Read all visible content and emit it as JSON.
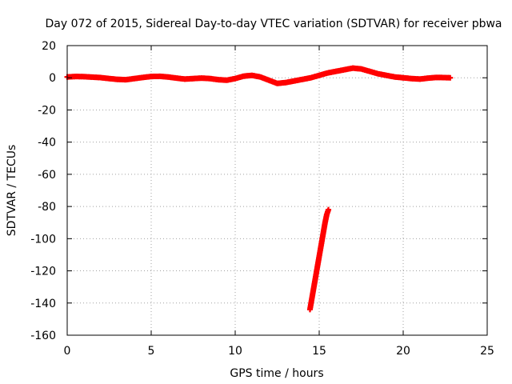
{
  "chart_data": {
    "type": "scatter",
    "title": "Day 072 of 2015, Sidereal Day-to-day VTEC variation (SDTVAR) for receiver pbwa",
    "xlabel": "GPS time / hours",
    "ylabel": "SDTVAR / TECUs",
    "xlim": [
      0,
      25
    ],
    "ylim": [
      -160,
      20
    ],
    "xticks": [
      0,
      5,
      10,
      15,
      20,
      25
    ],
    "yticks": [
      -160,
      -140,
      -120,
      -100,
      -80,
      -60,
      -40,
      -20,
      0,
      20
    ],
    "grid": true,
    "series": [
      {
        "marker": "plus",
        "color": "#ff0000",
        "points": [
          [
            0.0,
            0.5
          ],
          [
            0.5,
            0.8
          ],
          [
            1.0,
            0.7
          ],
          [
            1.5,
            0.4
          ],
          [
            2.0,
            0.1
          ],
          [
            2.5,
            -0.5
          ],
          [
            3.0,
            -1.0
          ],
          [
            3.5,
            -1.2
          ],
          [
            4.0,
            -0.5
          ],
          [
            4.5,
            0.2
          ],
          [
            5.0,
            0.8
          ],
          [
            5.5,
            0.9
          ],
          [
            6.0,
            0.5
          ],
          [
            6.5,
            -0.2
          ],
          [
            7.0,
            -0.8
          ],
          [
            7.5,
            -0.5
          ],
          [
            8.0,
            -0.2
          ],
          [
            8.5,
            -0.5
          ],
          [
            9.0,
            -1.2
          ],
          [
            9.5,
            -1.5
          ],
          [
            10.0,
            -0.5
          ],
          [
            10.5,
            1.0
          ],
          [
            11.0,
            1.5
          ],
          [
            11.5,
            0.5
          ],
          [
            12.0,
            -1.5
          ],
          [
            12.5,
            -3.5
          ],
          [
            13.0,
            -3.0
          ],
          [
            13.5,
            -2.0
          ],
          [
            14.0,
            -1.0
          ],
          [
            14.5,
            0.0
          ],
          [
            15.0,
            1.5
          ],
          [
            15.5,
            3.0
          ],
          [
            16.0,
            4.0
          ],
          [
            16.5,
            5.0
          ],
          [
            17.0,
            6.0
          ],
          [
            17.5,
            5.5
          ],
          [
            18.0,
            4.0
          ],
          [
            18.5,
            2.5
          ],
          [
            19.0,
            1.5
          ],
          [
            19.5,
            0.5
          ],
          [
            20.0,
            0.0
          ],
          [
            20.5,
            -0.5
          ],
          [
            21.0,
            -0.8
          ],
          [
            21.5,
            -0.2
          ],
          [
            22.0,
            0.2
          ],
          [
            22.5,
            0.1
          ],
          [
            22.8,
            0.0
          ]
        ]
      },
      {
        "marker": "plus",
        "color": "#ff0000",
        "points": [
          [
            14.45,
            -144
          ],
          [
            14.55,
            -138
          ],
          [
            14.65,
            -132
          ],
          [
            14.75,
            -126
          ],
          [
            14.85,
            -120
          ],
          [
            14.95,
            -114
          ],
          [
            15.05,
            -108
          ],
          [
            15.15,
            -102
          ],
          [
            15.25,
            -96
          ],
          [
            15.35,
            -90
          ],
          [
            15.45,
            -85
          ],
          [
            15.55,
            -82
          ]
        ]
      }
    ]
  }
}
